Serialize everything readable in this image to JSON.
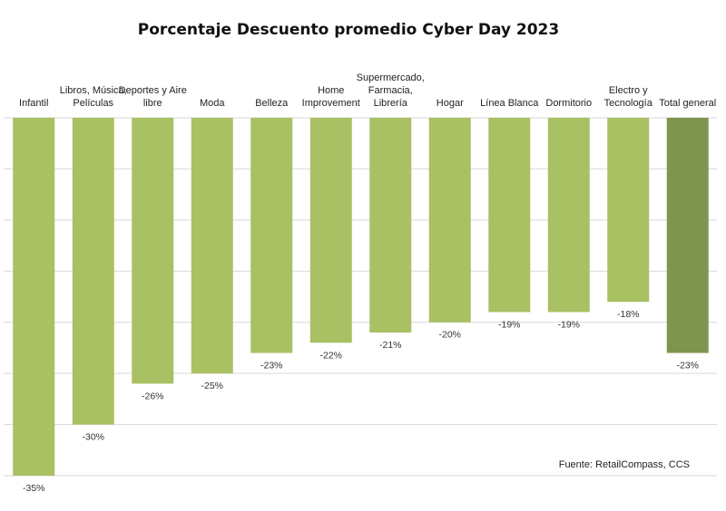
{
  "chart_data": {
    "type": "bar",
    "title": "Porcentaje Descuento promedio Cyber Day 2023",
    "categories": [
      [
        "Infantil"
      ],
      [
        "Libros, Música,",
        "Películas"
      ],
      [
        "Deportes y Aire",
        "libre"
      ],
      [
        "Moda"
      ],
      [
        "Belleza"
      ],
      [
        "Home",
        "Improvement"
      ],
      [
        "Supermercado,",
        "Farmacia,",
        "Librería"
      ],
      [
        "Hogar"
      ],
      [
        "Línea Blanca"
      ],
      [
        "Dormitorio"
      ],
      [
        "Electro y",
        "Tecnología"
      ],
      [
        "Total general"
      ]
    ],
    "values": [
      -35,
      -30,
      -26,
      -25,
      -23,
      -22,
      -21,
      -20,
      -19,
      -19,
      -18,
      -23
    ],
    "data_labels": [
      "-35%",
      "-30%",
      "-26%",
      "-25%",
      "-23%",
      "-22%",
      "-21%",
      "-20%",
      "-19%",
      "-19%",
      "-18%",
      "-23%"
    ],
    "ylim": [
      -35,
      0
    ],
    "grid": true,
    "source": "Fuente: RetailCompass, CCS",
    "colors": {
      "bar": "#a9c063",
      "total_bar": "#7f944f",
      "grid": "#d9d9d9"
    }
  }
}
